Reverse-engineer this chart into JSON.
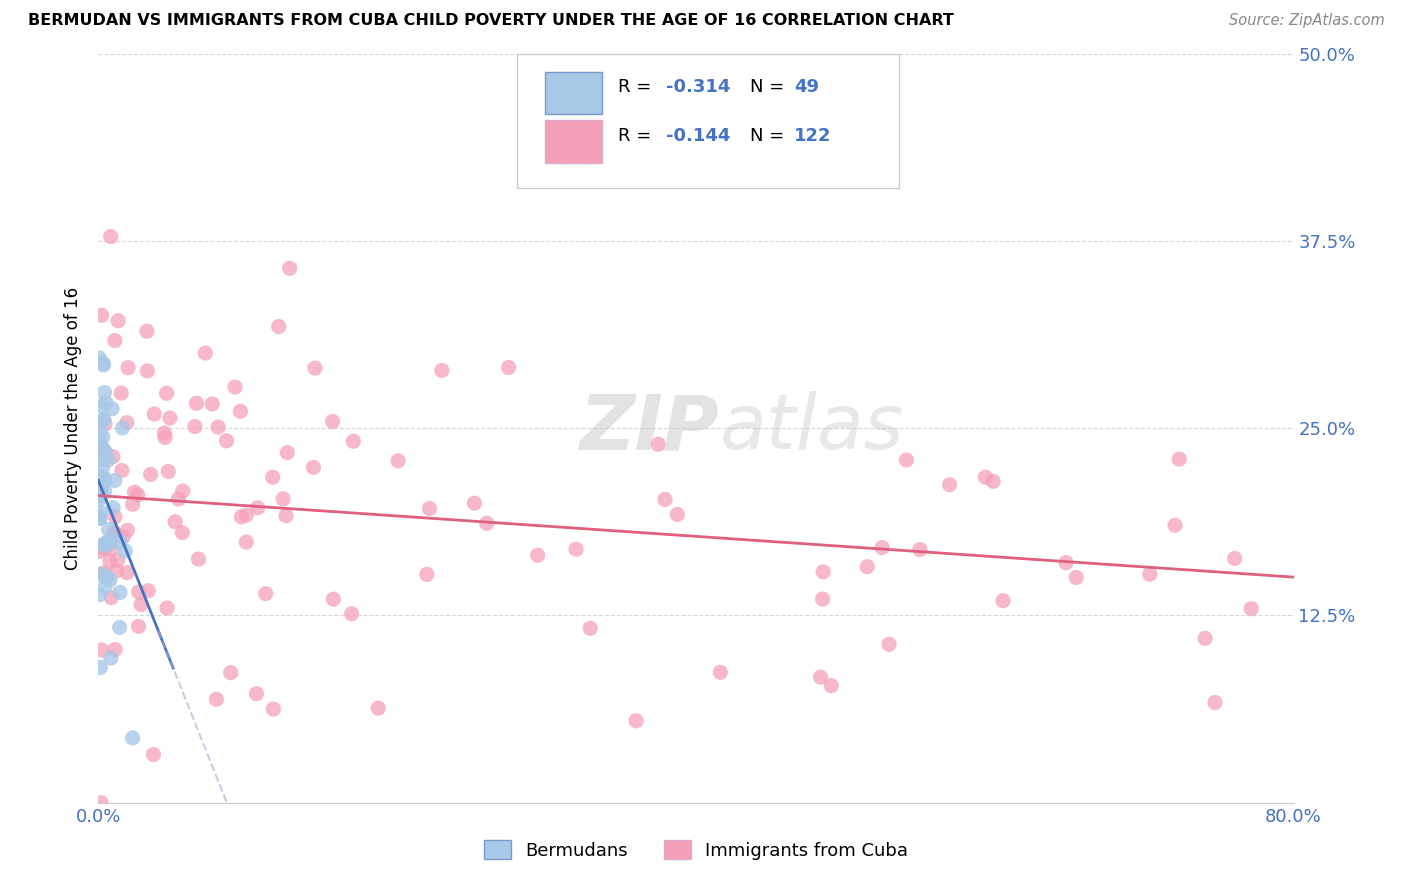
{
  "title": "BERMUDAN VS IMMIGRANTS FROM CUBA CHILD POVERTY UNDER THE AGE OF 16 CORRELATION CHART",
  "source": "Source: ZipAtlas.com",
  "ylabel": "Child Poverty Under the Age of 16",
  "xmin": 0.0,
  "xmax": 0.8,
  "ymin": 0.0,
  "ymax": 0.5,
  "legend_r1": "-0.314",
  "legend_n1": "49",
  "legend_r2": "-0.144",
  "legend_n2": "122",
  "color_bermuda": "#a8c8e8",
  "color_cuba": "#f5a0b8",
  "color_blue": "#4472c4",
  "watermark_zip": "ZIP",
  "watermark_atlas": "atlas",
  "ytick_labels": [
    "",
    "12.5%",
    "25.0%",
    "37.5%",
    "50.0%"
  ],
  "ytick_vals": [
    0.0,
    0.125,
    0.25,
    0.375,
    0.5
  ],
  "bermuda_trend_x": [
    0.0,
    0.05
  ],
  "bermuda_trend_y_start": 0.215,
  "bermuda_trend_slope": -2.5,
  "cuba_trend_x": [
    0.0,
    0.8
  ],
  "cuba_trend_y_start": 0.205,
  "cuba_trend_slope": -0.068
}
